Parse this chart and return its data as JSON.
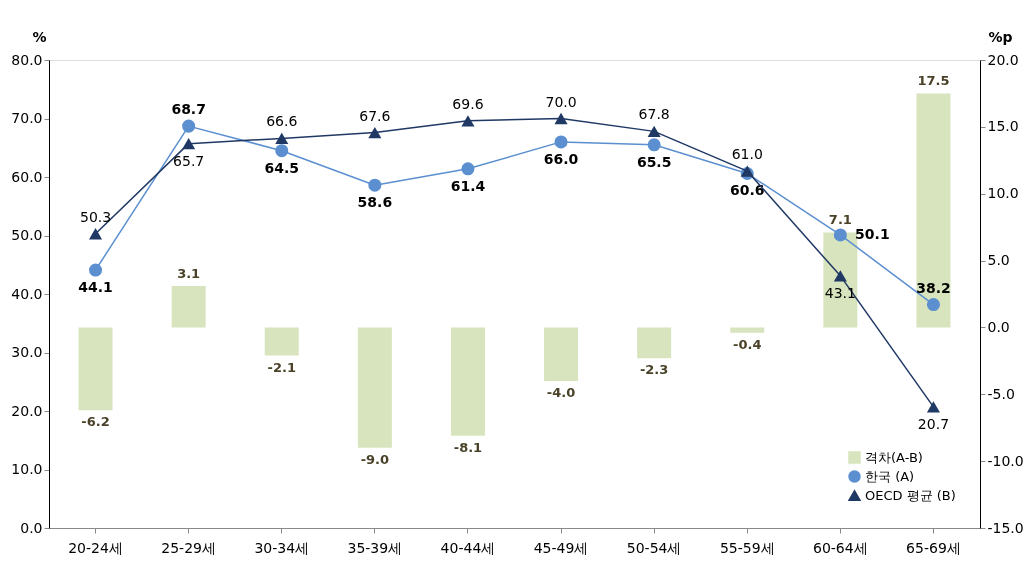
{
  "chart_data": {
    "type": "line",
    "categories": [
      "20-24세",
      "25-29세",
      "30-34세",
      "35-39세",
      "40-44세",
      "45-49세",
      "50-54세",
      "55-59세",
      "60-64세",
      "65-69세"
    ],
    "ylabel": "%",
    "y2label": "%p",
    "ylim": [
      0,
      80
    ],
    "yticks": [
      {
        "value": 0,
        "label": "0.0"
      },
      {
        "value": 10,
        "label": "10.0"
      },
      {
        "value": 20,
        "label": "20.0"
      },
      {
        "value": 30,
        "label": "30.0"
      },
      {
        "value": 40,
        "label": "40.0"
      },
      {
        "value": 50,
        "label": "50.0"
      },
      {
        "value": 60,
        "label": "60.0"
      },
      {
        "value": 70,
        "label": "70.0"
      },
      {
        "value": 80,
        "label": "80.0"
      }
    ],
    "y2lim": [
      -15,
      20
    ],
    "y2ticks": [
      {
        "value": -15,
        "label": "-15.0"
      },
      {
        "value": -10,
        "label": "-10.0"
      },
      {
        "value": -5,
        "label": "-5.0"
      },
      {
        "value": 0,
        "label": "0.0"
      },
      {
        "value": 5,
        "label": "5.0"
      },
      {
        "value": 10,
        "label": "10.0"
      },
      {
        "value": 15,
        "label": "15.0"
      },
      {
        "value": 20,
        "label": "20.0"
      }
    ],
    "grid": false,
    "legend": "bottom right",
    "data_labels": true,
    "series": [
      {
        "name": "격차(A-B)",
        "type": "bar",
        "axis": "y2",
        "color": "#d7e4bd",
        "values": [
          -6.2,
          3.1,
          -2.1,
          -9.0,
          -8.1,
          -4.0,
          -2.3,
          -0.4,
          7.1,
          17.5
        ],
        "value_labels": [
          "-6.2",
          "3.1",
          "-2.1",
          "-9.0",
          "-8.1",
          "-4.0",
          "-2.3",
          "-0.4",
          "7.1",
          "17.5"
        ]
      },
      {
        "name": "한국 (A)",
        "marker": "circle",
        "line_style": "solid",
        "color": "#5b8fd0",
        "values": [
          44.1,
          68.7,
          64.5,
          58.6,
          61.4,
          66.0,
          65.5,
          60.6,
          50.1,
          38.2
        ],
        "value_labels": [
          "44.1",
          "68.7",
          "64.5",
          "58.6",
          "61.4",
          "66.0",
          "65.5",
          "60.6",
          "50.1",
          "38.2"
        ]
      },
      {
        "name": "OECD 평균 (B)",
        "marker": "triangle",
        "line_style": "solid",
        "color": "#1f3864",
        "values": [
          50.3,
          65.7,
          66.6,
          67.6,
          69.6,
          70.0,
          67.8,
          61.0,
          43.1,
          20.7
        ],
        "value_labels": [
          "50.3",
          "65.7",
          "66.6",
          "67.6",
          "69.6",
          "70.0",
          "67.8",
          "61.0",
          "43.1",
          "20.7"
        ]
      }
    ]
  }
}
